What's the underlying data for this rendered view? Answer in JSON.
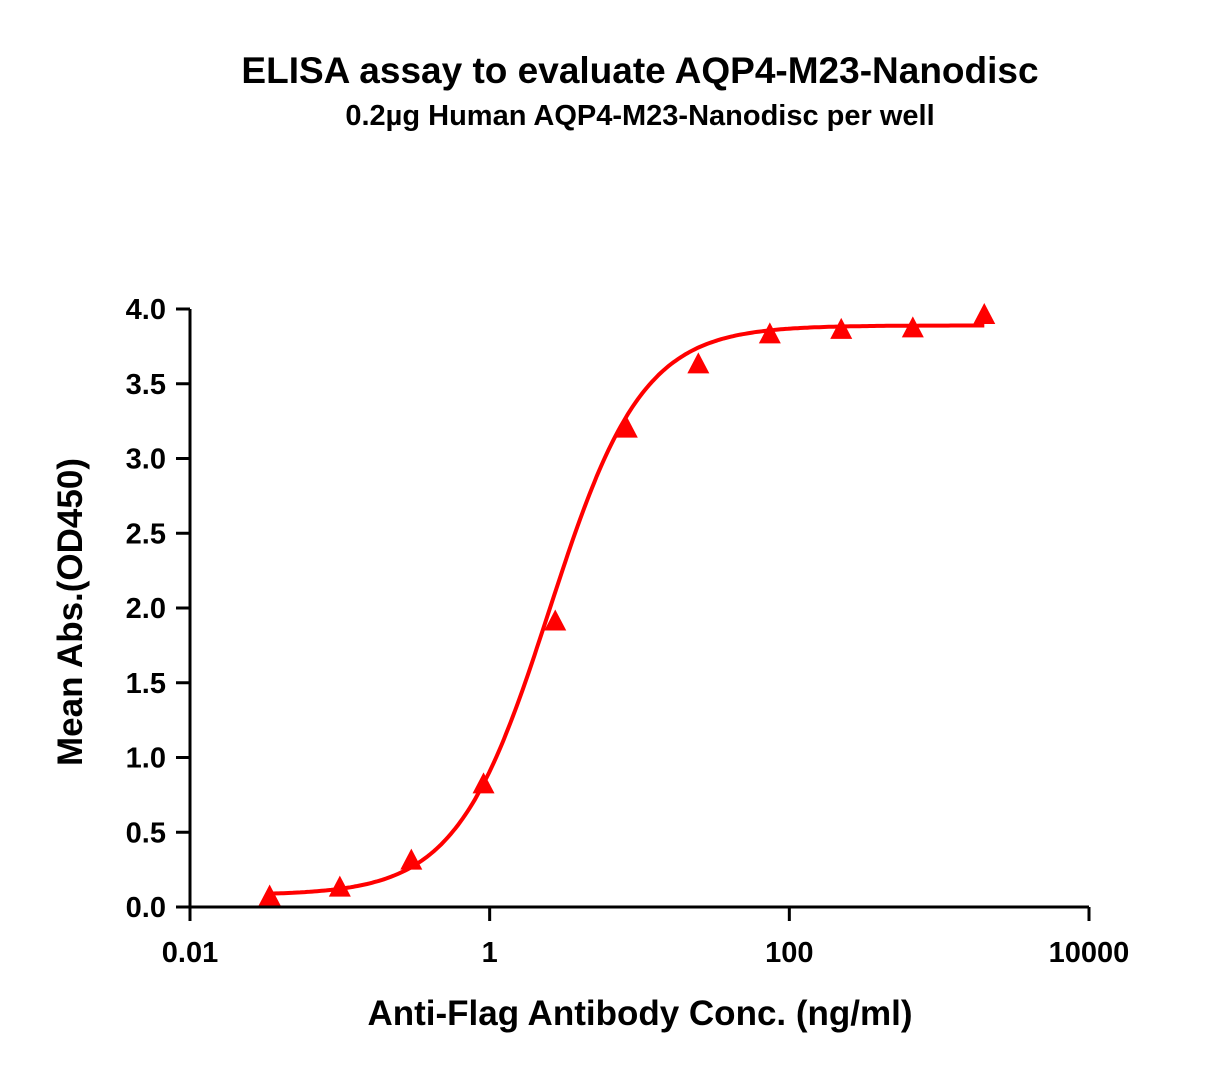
{
  "chart_data": {
    "type": "scatter",
    "title": "ELISA assay to evaluate AQP4-M23-Nanodisc",
    "subtitle": "0.2µg Human AQP4-M23-Nanodisc per well",
    "xlabel": "Anti-Flag Antibody Conc. (ng/ml)",
    "ylabel": "Mean Abs.(OD450)",
    "x_scale": "log",
    "xlim": [
      0.01,
      10000
    ],
    "ylim": [
      0,
      4.0
    ],
    "x_ticks": [
      "0.01",
      "1",
      "100",
      "10000"
    ],
    "y_ticks": [
      "0.0",
      "0.5",
      "1.0",
      "1.5",
      "2.0",
      "2.5",
      "3.0",
      "3.5",
      "4.0"
    ],
    "grid": false,
    "color": "#ff0000",
    "marker": "triangle",
    "series": [
      {
        "x": [
          0.034,
          0.1,
          0.3,
          0.91,
          2.74,
          8.23,
          24.7,
          74.1,
          222,
          667,
          2000
        ],
        "y": [
          0.07,
          0.13,
          0.31,
          0.82,
          1.91,
          3.2,
          3.63,
          3.83,
          3.86,
          3.87,
          3.96
        ]
      }
    ],
    "fit": {
      "model": "4PL",
      "bottom": 0.08,
      "top": 3.89,
      "ec50": 2.5,
      "hill": 1.4
    }
  }
}
